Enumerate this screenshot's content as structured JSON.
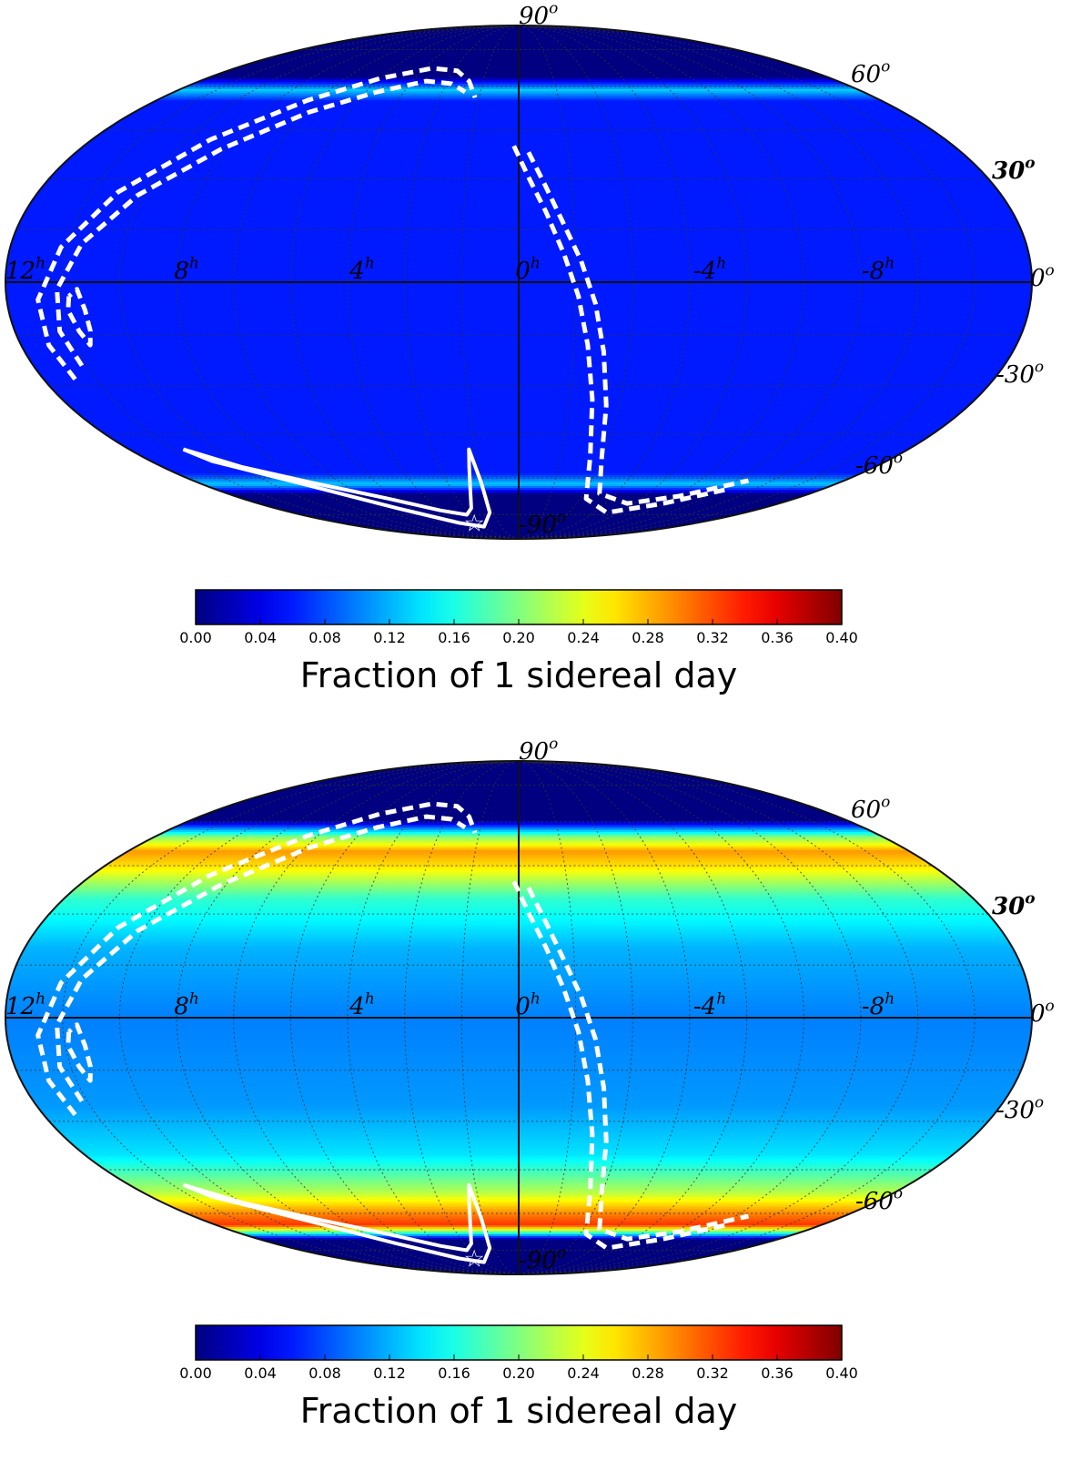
{
  "chart_data": [
    {
      "type": "heatmap",
      "projection": "mollweide",
      "grid": true,
      "ra_labels": [
        "12^h",
        "8^h",
        "4^h",
        "0^h",
        "-4^h",
        "-8^h"
      ],
      "dec_labels": [
        "90^o",
        "60^o",
        "30^o",
        "0^o",
        "-30^o",
        "-60^o",
        "-90^o"
      ],
      "colorbar": {
        "label": "Fraction of 1 sidereal day",
        "ticks": [
          "0.00",
          "0.04",
          "0.08",
          "0.12",
          "0.16",
          "0.20",
          "0.24",
          "0.28",
          "0.32",
          "0.36",
          "0.40"
        ],
        "range": [
          0.0,
          0.4
        ],
        "colormap": "jet"
      },
      "dec_profile": [
        {
          "dec": -90,
          "value": 0.0
        },
        {
          "dec": -66,
          "value": 0.0
        },
        {
          "dec": -62,
          "value": 0.13
        },
        {
          "dec": -58,
          "value": 0.06
        },
        {
          "dec": 55,
          "value": 0.06
        },
        {
          "dec": 59,
          "value": 0.13
        },
        {
          "dec": 64,
          "value": 0.0
        },
        {
          "dec": 90,
          "value": 0.0
        }
      ]
    },
    {
      "type": "heatmap",
      "projection": "mollweide",
      "grid": true,
      "ra_labels": [
        "12^h",
        "8^h",
        "4^h",
        "0^h",
        "-4^h",
        "-8^h"
      ],
      "dec_labels": [
        "90^o",
        "60^o",
        "30^o",
        "0^o",
        "-30^o",
        "-60^o",
        "-90^o"
      ],
      "colorbar": {
        "label": "Fraction of 1 sidereal day",
        "ticks": [
          "0.00",
          "0.04",
          "0.08",
          "0.12",
          "0.16",
          "0.20",
          "0.24",
          "0.28",
          "0.32",
          "0.36",
          "0.40"
        ],
        "range": [
          0.0,
          0.4
        ],
        "colormap": "jet"
      },
      "dec_profile": [
        {
          "dec": -90,
          "value": 0.0
        },
        {
          "dec": -70,
          "value": 0.0
        },
        {
          "dec": -67,
          "value": 0.18
        },
        {
          "dec": -64,
          "value": 0.33
        },
        {
          "dec": -60,
          "value": 0.3
        },
        {
          "dec": -52,
          "value": 0.22
        },
        {
          "dec": -40,
          "value": 0.14
        },
        {
          "dec": -25,
          "value": 0.11
        },
        {
          "dec": 0,
          "value": 0.1
        },
        {
          "dec": 20,
          "value": 0.12
        },
        {
          "dec": 35,
          "value": 0.17
        },
        {
          "dec": 45,
          "value": 0.26
        },
        {
          "dec": 50,
          "value": 0.29
        },
        {
          "dec": 55,
          "value": 0.2
        },
        {
          "dec": 58,
          "value": 0.1
        },
        {
          "dec": 61,
          "value": 0.0
        },
        {
          "dec": 90,
          "value": 0.0
        }
      ]
    }
  ]
}
